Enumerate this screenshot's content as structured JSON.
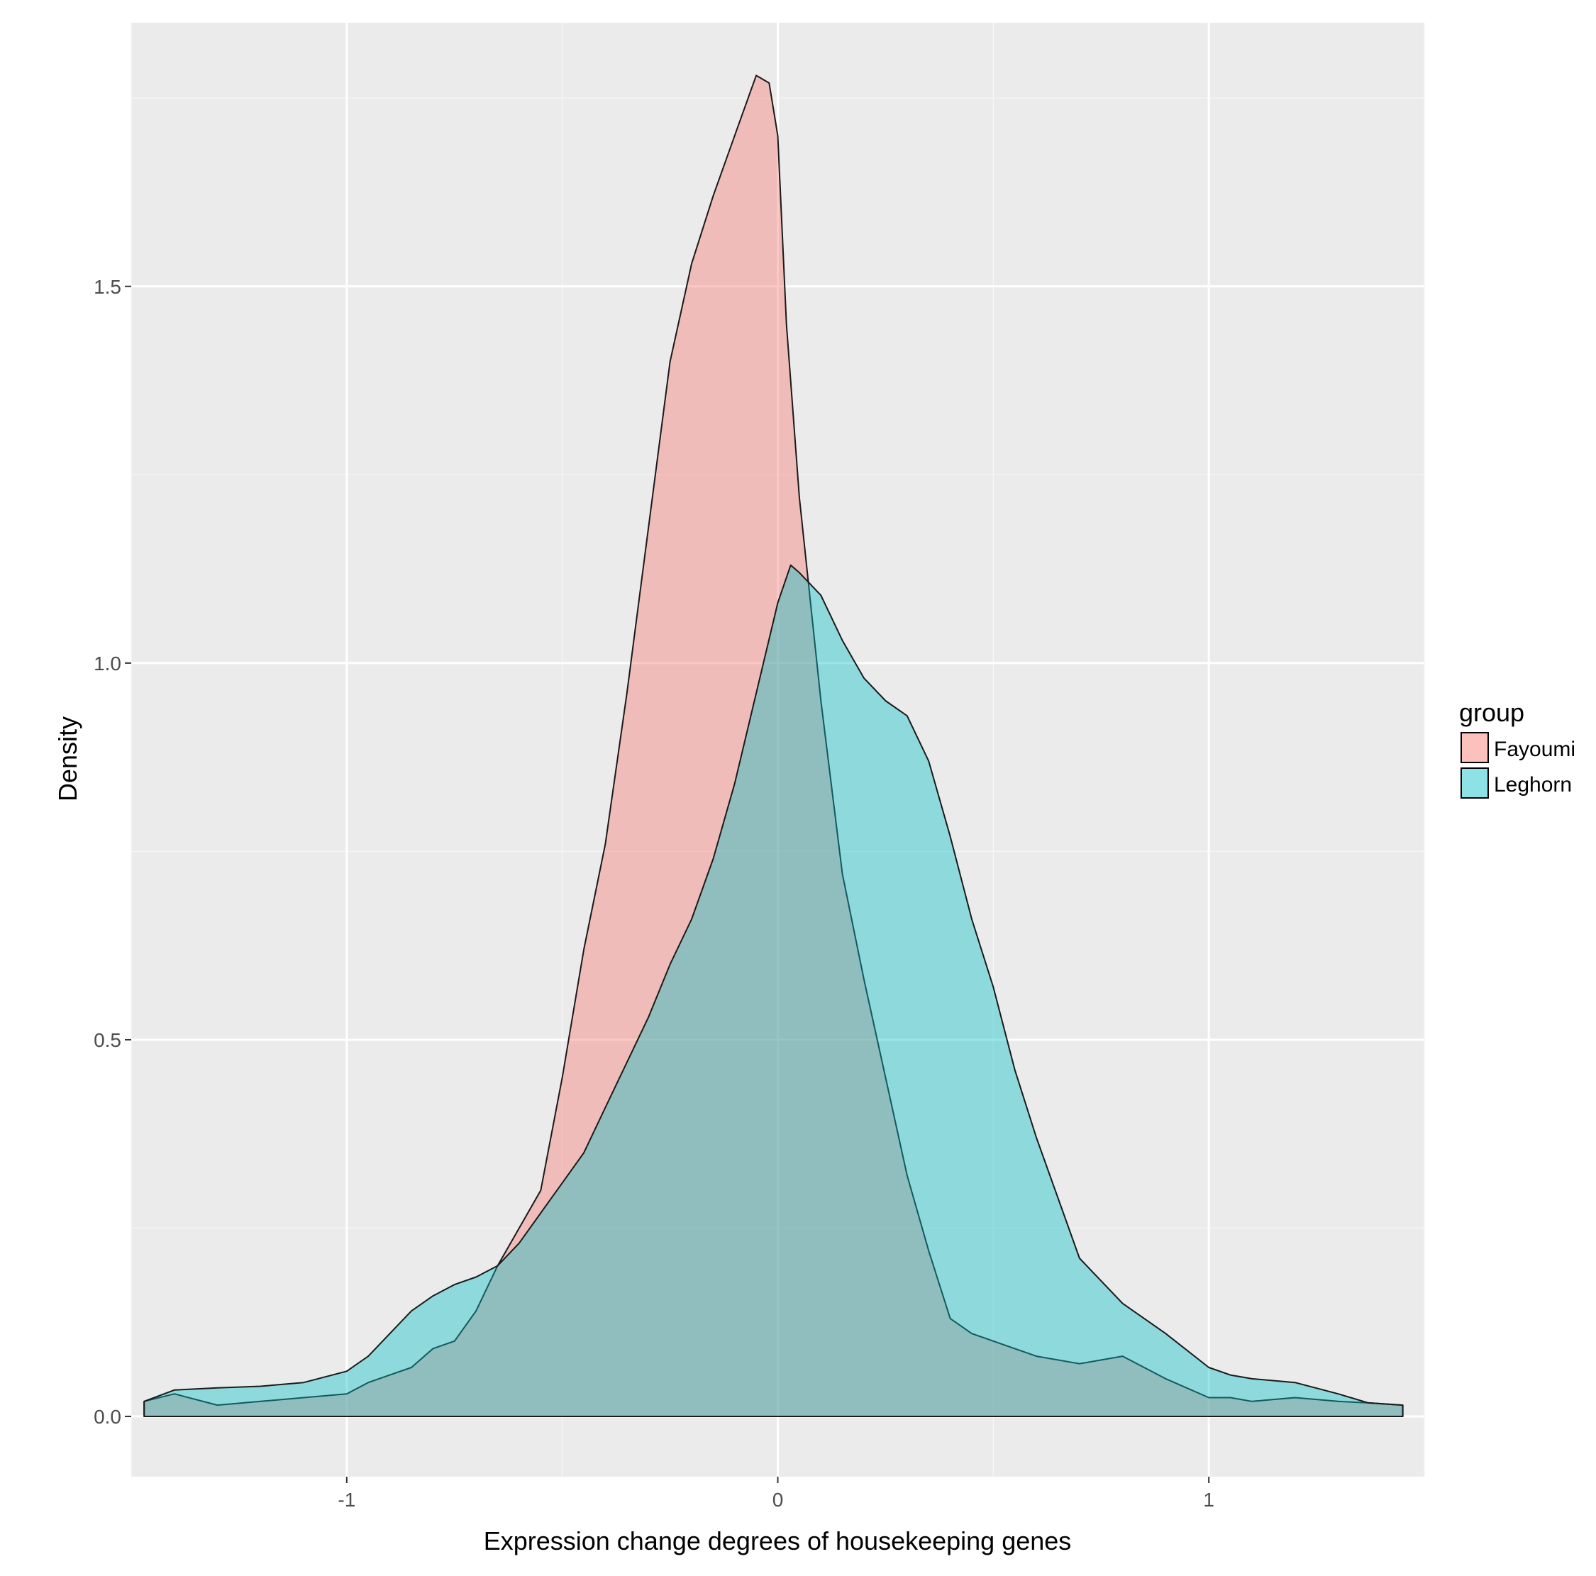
{
  "chart_data": {
    "type": "area",
    "xlabel": "Expression change degrees of housekeeping genes",
    "ylabel": "Density",
    "xlim": [
      -1.5,
      1.5
    ],
    "ylim": [
      -0.08,
      1.85
    ],
    "xticks": [
      -1,
      0,
      1
    ],
    "xtick_labels": [
      "-1",
      "0",
      "1"
    ],
    "yticks": [
      0.0,
      0.5,
      1.0,
      1.5
    ],
    "ytick_labels": [
      "0.0",
      "0.5",
      "1.0",
      "1.5"
    ],
    "grid": true,
    "legend": {
      "title": "group",
      "placement": "right"
    },
    "series": [
      {
        "name": "Fayoumi",
        "color": "#F8766D",
        "x": [
          -1.47,
          -1.4,
          -1.3,
          -1.2,
          -1.1,
          -1.0,
          -0.95,
          -0.9,
          -0.85,
          -0.8,
          -0.75,
          -0.7,
          -0.65,
          -0.6,
          -0.55,
          -0.5,
          -0.45,
          -0.4,
          -0.35,
          -0.3,
          -0.25,
          -0.2,
          -0.15,
          -0.1,
          -0.05,
          -0.02,
          0.0,
          0.02,
          0.05,
          0.1,
          0.15,
          0.2,
          0.25,
          0.3,
          0.35,
          0.4,
          0.45,
          0.5,
          0.6,
          0.7,
          0.8,
          0.9,
          1.0,
          1.05,
          1.1,
          1.2,
          1.3,
          1.37,
          1.45
        ],
        "y": [
          0.02,
          0.03,
          0.015,
          0.02,
          0.025,
          0.03,
          0.045,
          0.055,
          0.065,
          0.09,
          0.1,
          0.14,
          0.2,
          0.25,
          0.3,
          0.45,
          0.62,
          0.76,
          0.96,
          1.18,
          1.4,
          1.53,
          1.62,
          1.7,
          1.78,
          1.77,
          1.7,
          1.45,
          1.22,
          0.95,
          0.72,
          0.58,
          0.45,
          0.32,
          0.22,
          0.13,
          0.11,
          0.1,
          0.08,
          0.07,
          0.08,
          0.05,
          0.025,
          0.025,
          0.02,
          0.025,
          0.02,
          0.018,
          0.015
        ]
      },
      {
        "name": "Leghorn",
        "color": "#00BFC4",
        "x": [
          -1.47,
          -1.4,
          -1.3,
          -1.2,
          -1.1,
          -1.0,
          -0.95,
          -0.9,
          -0.85,
          -0.8,
          -0.75,
          -0.7,
          -0.65,
          -0.6,
          -0.55,
          -0.5,
          -0.45,
          -0.4,
          -0.35,
          -0.3,
          -0.25,
          -0.2,
          -0.15,
          -0.1,
          -0.05,
          0.0,
          0.03,
          0.05,
          0.1,
          0.15,
          0.2,
          0.25,
          0.3,
          0.35,
          0.4,
          0.45,
          0.5,
          0.55,
          0.6,
          0.7,
          0.8,
          0.9,
          1.0,
          1.05,
          1.1,
          1.2,
          1.3,
          1.37,
          1.45
        ],
        "y": [
          0.02,
          0.035,
          0.038,
          0.04,
          0.045,
          0.06,
          0.08,
          0.11,
          0.14,
          0.16,
          0.175,
          0.185,
          0.2,
          0.23,
          0.27,
          0.31,
          0.35,
          0.41,
          0.47,
          0.53,
          0.6,
          0.66,
          0.74,
          0.84,
          0.96,
          1.08,
          1.13,
          1.12,
          1.09,
          1.03,
          0.98,
          0.95,
          0.93,
          0.87,
          0.77,
          0.66,
          0.57,
          0.46,
          0.37,
          0.21,
          0.15,
          0.11,
          0.065,
          0.055,
          0.05,
          0.045,
          0.03,
          0.018,
          0.015
        ]
      }
    ]
  }
}
